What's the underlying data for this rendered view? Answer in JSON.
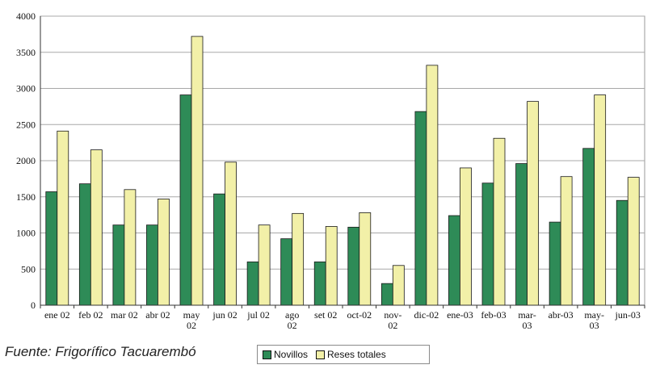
{
  "source_note": "Fuente: Frigorífico Tacuarembó",
  "chart_data": {
    "type": "bar",
    "title": "",
    "xlabel": "",
    "ylabel": "",
    "ylim": [
      0,
      4000
    ],
    "yticks": [
      "0",
      "500",
      "1000",
      "1500",
      "2000",
      "2500",
      "3000",
      "3500",
      "4000"
    ],
    "grid": true,
    "legend_position": "bottom",
    "categories": [
      [
        "ene 02"
      ],
      [
        "feb 02"
      ],
      [
        "mar 02"
      ],
      [
        "abr 02"
      ],
      [
        "may",
        "02"
      ],
      [
        "jun 02"
      ],
      [
        "jul 02"
      ],
      [
        "ago",
        "02"
      ],
      [
        "set 02"
      ],
      [
        "oct-02"
      ],
      [
        "nov-",
        "02"
      ],
      [
        "dic-02"
      ],
      [
        "ene-03"
      ],
      [
        "feb-03"
      ],
      [
        "mar-",
        "03"
      ],
      [
        "abr-03"
      ],
      [
        "may-",
        "03"
      ],
      [
        "jun-03"
      ]
    ],
    "series": [
      {
        "name": "Novillos",
        "color": "#2e8b57",
        "values": [
          1570,
          1680,
          1110,
          1110,
          2910,
          1540,
          600,
          920,
          600,
          1080,
          300,
          2680,
          1240,
          1690,
          1960,
          1150,
          2170,
          1450
        ]
      },
      {
        "name": "Reses totales",
        "color": "#f2f0a8",
        "values": [
          2410,
          2150,
          1600,
          1470,
          3720,
          1980,
          1110,
          1270,
          1090,
          1280,
          550,
          3320,
          1900,
          2310,
          2820,
          1780,
          2910,
          1770
        ]
      }
    ]
  }
}
